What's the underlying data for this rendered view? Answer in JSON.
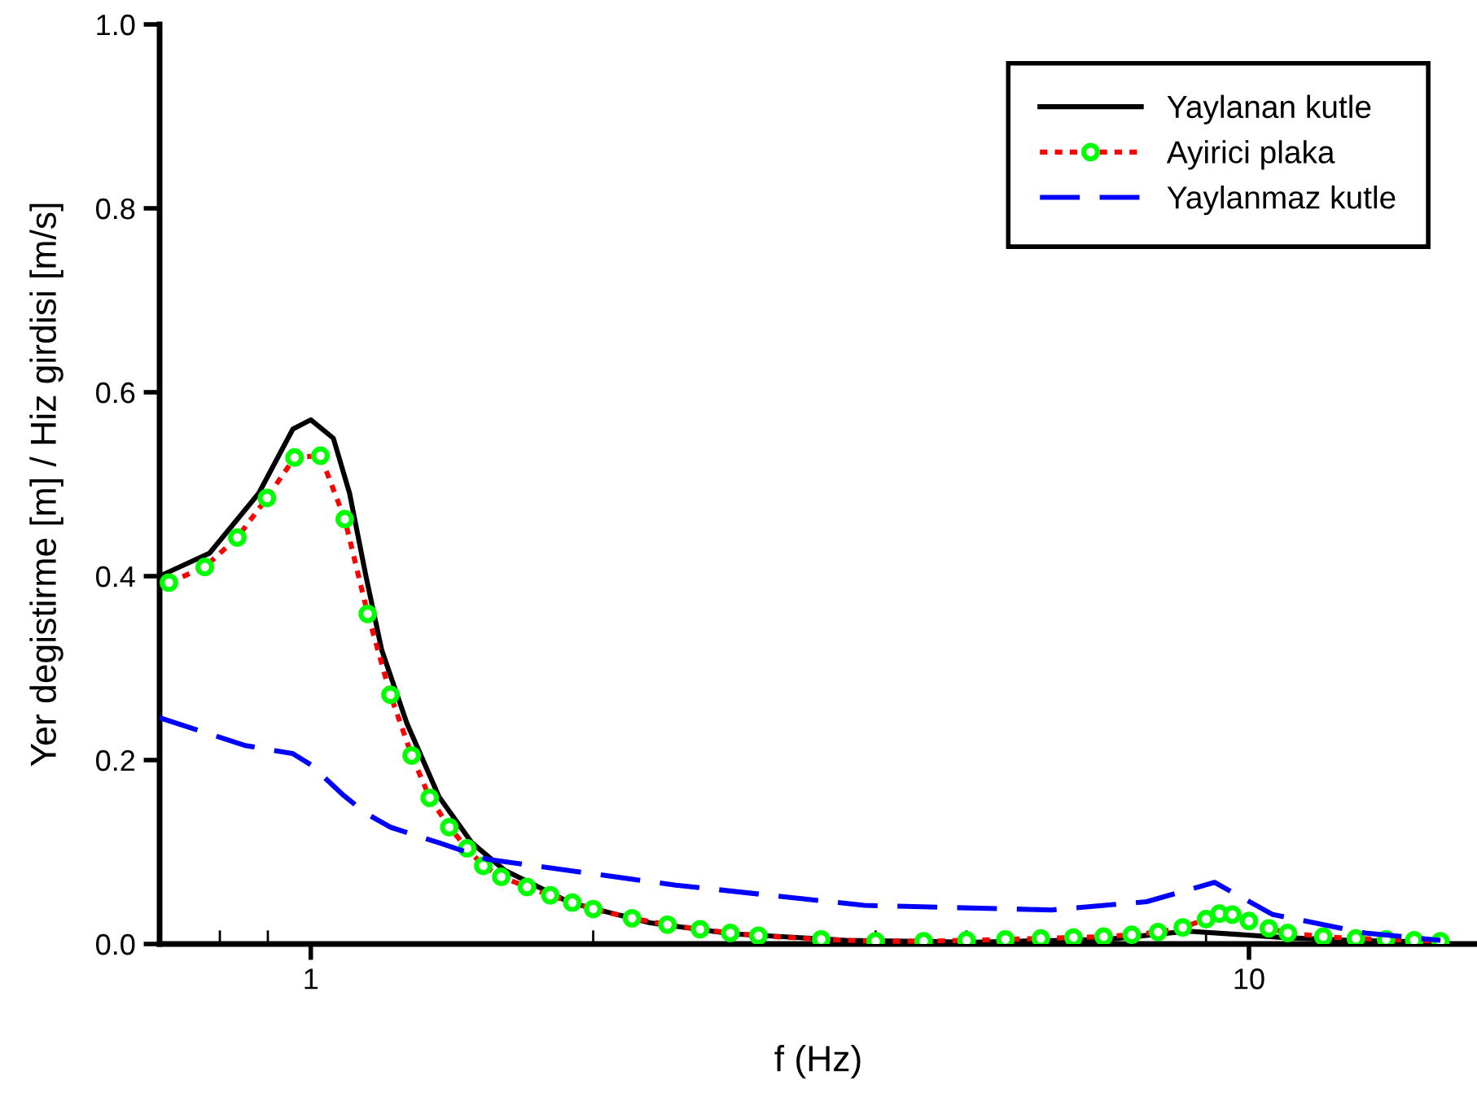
{
  "chart_data": {
    "type": "line",
    "xlabel": "f (Hz)",
    "ylabel": "Yer degistirme [m] / Hiz girdisi [m/s]",
    "log": "x",
    "xlim": [
      0.69,
      17.5
    ],
    "ylim": [
      0,
      1.0
    ],
    "xticks": [
      {
        "value": 0.8,
        "label": null
      },
      {
        "value": 0.9,
        "label": null
      },
      1,
      {
        "value": 2,
        "label": null
      },
      {
        "value": 4,
        "label": null
      },
      {
        "value": 5,
        "label": null
      },
      {
        "value": 8,
        "label": null
      },
      {
        "value": 9,
        "label": null
      },
      10
    ],
    "yticks": [
      {
        "value": 0,
        "label": "0.0"
      },
      {
        "value": 0.2,
        "label": "0.2"
      },
      {
        "value": 0.4,
        "label": "0.4"
      },
      {
        "value": 0.6,
        "label": "0.6"
      },
      {
        "value": 0.8,
        "label": "0.8"
      },
      {
        "value": 1.0,
        "label": "1.0"
      }
    ],
    "grid": false,
    "legend": "top right",
    "series": [
      {
        "name": "Yaylanan kutle",
        "color": "#000000",
        "line_style": "solid",
        "marker": "none",
        "x": [
          0.69,
          0.78,
          0.88,
          0.957,
          1.0,
          1.057,
          1.1,
          1.145,
          1.19,
          1.266,
          1.37,
          1.485,
          1.61,
          1.89,
          2.3,
          2.81,
          3.72,
          5.1,
          7.06,
          8.6,
          10.9,
          12.8,
          16
        ],
        "values": [
          0.4,
          0.425,
          0.49,
          0.56,
          0.57,
          0.55,
          0.49,
          0.4,
          0.32,
          0.24,
          0.16,
          0.11,
          0.08,
          0.045,
          0.023,
          0.011,
          0.004,
          0.002,
          0.005,
          0.014,
          0.007,
          0.004,
          0.002
        ]
      },
      {
        "name": "Ayirici plaka",
        "color": "#ff0000",
        "line_style": "dotted",
        "marker": "circle",
        "x": [
          0.706,
          0.771,
          0.835,
          0.898,
          0.961,
          1.024,
          1.087,
          1.15,
          1.216,
          1.281,
          1.339,
          1.405,
          1.468,
          1.527,
          1.596,
          1.7,
          1.8,
          1.9,
          2.0,
          2.2,
          2.4,
          2.6,
          2.8,
          3.0,
          3.5,
          4,
          4.5,
          5,
          5.5,
          6,
          6.5,
          7,
          7.5,
          8,
          8.5,
          9,
          9.3,
          9.6,
          10,
          10.5,
          11,
          12,
          13,
          14,
          15,
          16
        ],
        "values": [
          0.393,
          0.41,
          0.442,
          0.485,
          0.529,
          0.531,
          0.462,
          0.359,
          0.271,
          0.205,
          0.159,
          0.127,
          0.104,
          0.085,
          0.073,
          0.062,
          0.053,
          0.045,
          0.038,
          0.028,
          0.021,
          0.016,
          0.012,
          0.009,
          0.005,
          0.003,
          0.003,
          0.004,
          0.005,
          0.006,
          0.007,
          0.008,
          0.01,
          0.013,
          0.018,
          0.027,
          0.033,
          0.032,
          0.025,
          0.017,
          0.012,
          0.008,
          0.006,
          0.005,
          0.004,
          0.003
        ],
        "colors": [
          "#00ff00",
          "#00ff00",
          "#00ff00",
          "#00ff00",
          "#00ff00",
          "#00ff00",
          "#00ff00",
          "#00ff00",
          "#00ff00",
          "#00ff00",
          "#00ff00",
          "#00ff00",
          "#00ff00",
          "#00ff00",
          "#00ff00",
          "#00ff00",
          "#00ff00",
          "#00ff00",
          "#00ff00",
          "#00ff00",
          "#00ff00",
          "#00ff00",
          "#00ff00",
          "#00ff00",
          "#00ff00",
          "#00ff00",
          "#00ff00",
          "#00ff00",
          "#00ff00",
          "#00ff00",
          "#00ff00",
          "#00ff00",
          "#00ff00",
          "#00ff00",
          "#00ff00",
          "#00ff00",
          "#00ff00",
          "#00ff00",
          "#00ff00",
          "#00ff00",
          "#00ff00",
          "#00ff00",
          "#00ff00",
          "#00ff00",
          "#00ff00",
          "#00ff00"
        ]
      },
      {
        "name": "Yaylanmaz kutle",
        "color": "#0000ff",
        "line_style": "dashed",
        "marker": "none",
        "x": [
          0.69,
          0.85,
          0.957,
          1.0,
          1.08,
          1.145,
          1.216,
          1.37,
          1.545,
          2.45,
          3.89,
          6.16,
          7.78,
          9.19,
          10.6,
          13.3,
          16
        ],
        "values": [
          0.246,
          0.216,
          0.207,
          0.195,
          0.163,
          0.142,
          0.127,
          0.11,
          0.092,
          0.064,
          0.042,
          0.037,
          0.046,
          0.067,
          0.032,
          0.012,
          0.004
        ]
      }
    ]
  }
}
